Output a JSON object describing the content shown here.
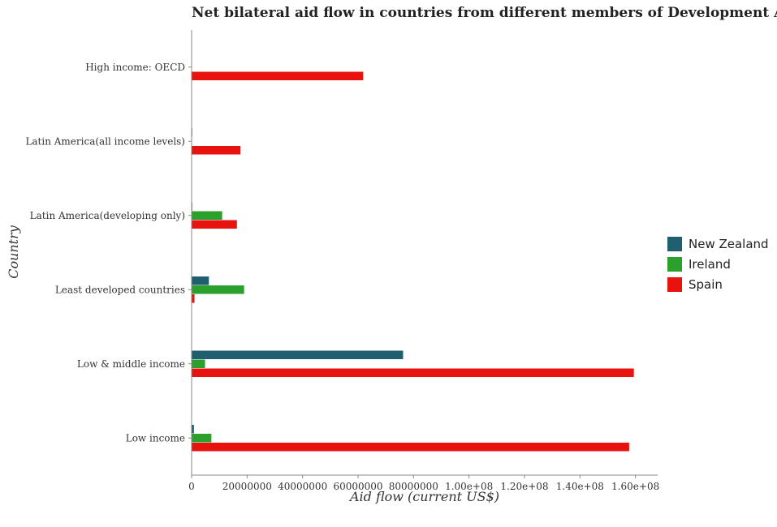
{
  "chart_data": {
    "type": "bar",
    "orientation": "horizontal",
    "title": "Net bilateral aid flow in countries from different members of Development Assistance",
    "xlabel": "Aid flow (current US$)",
    "ylabel": "Country",
    "categories": [
      "High income: OECD",
      "Latin America(all income levels)",
      "Latin America(developing only)",
      "Least developed countries",
      "Low & middle income",
      "Low income"
    ],
    "xlim": [
      0,
      168000000
    ],
    "xticks": [
      0,
      20000000,
      40000000,
      60000000,
      80000000,
      100000000,
      120000000,
      140000000,
      160000000
    ],
    "xtick_labels": [
      "0",
      "20000000",
      "40000000",
      "60000000",
      "80000000",
      "1.00e+08",
      "1.20e+08",
      "1.40e+08",
      "1.60e+08"
    ],
    "grid": false,
    "legend_position": "right",
    "series": [
      {
        "name": "New Zealand",
        "color": "#1f5f6f",
        "values": [
          0,
          300000,
          300000,
          6300000,
          76300000,
          900000
        ]
      },
      {
        "name": "Ireland",
        "color": "#2ca02c",
        "values": [
          0,
          0,
          11100000,
          19000000,
          4900000,
          7200000
        ]
      },
      {
        "name": "Spain",
        "color": "#e8120f",
        "values": [
          61900000,
          17700000,
          16400000,
          1100000,
          159500000,
          157800000
        ]
      }
    ]
  }
}
